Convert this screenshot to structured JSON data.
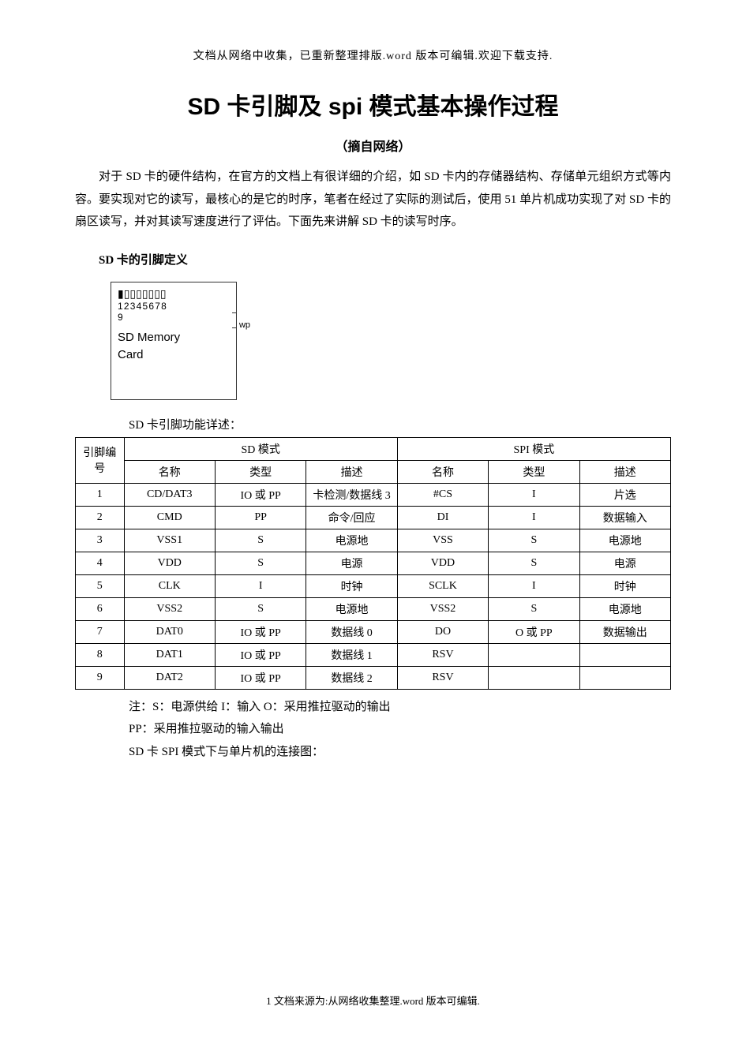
{
  "header_note": "文档从网络中收集，已重新整理排版.word 版本可编辑.欢迎下载支持.",
  "title": "SD 卡引脚及 spi 模式基本操作过程",
  "subtitle": "（摘自网络）",
  "intro": "对于 SD 卡的硬件结构，在官方的文档上有很详细的介绍，如 SD 卡内的存储器结构、存储单元组织方式等内容。要实现对它的读写，最核心的是它的时序，笔者在经过了实际的测试后，使用 51 单片机成功实现了对 SD 卡的扇区读写，并对其读写速度进行了评估。下面先来讲解 SD 卡的读写时序。",
  "section1_heading": "SD 卡的引脚定义",
  "sd_diagram": {
    "pins_row1": "12345678",
    "pins_row2": "9",
    "label_line1": "SD Memory",
    "label_line2": "Card",
    "wp_label": "wp"
  },
  "table_caption": "SD 卡引脚功能详述：",
  "table": {
    "header_pin": "引脚编号",
    "header_sd_mode": "SD 模式",
    "header_spi_mode": "SPI 模式",
    "header_name": "名称",
    "header_type": "类型",
    "header_desc": "描述",
    "rows": [
      {
        "pin": "1",
        "sd_name": "CD/DAT3",
        "sd_type": "IO 或 PP",
        "sd_desc": "卡检测/数据线 3",
        "spi_name": "#CS",
        "spi_type": "I",
        "spi_desc": "片选"
      },
      {
        "pin": "2",
        "sd_name": "CMD",
        "sd_type": "PP",
        "sd_desc": "命令/回应",
        "spi_name": "DI",
        "spi_type": "I",
        "spi_desc": "数据输入"
      },
      {
        "pin": "3",
        "sd_name": "VSS1",
        "sd_type": "S",
        "sd_desc": "电源地",
        "spi_name": "VSS",
        "spi_type": "S",
        "spi_desc": "电源地"
      },
      {
        "pin": "4",
        "sd_name": "VDD",
        "sd_type": "S",
        "sd_desc": "电源",
        "spi_name": "VDD",
        "spi_type": "S",
        "spi_desc": "电源"
      },
      {
        "pin": "5",
        "sd_name": "CLK",
        "sd_type": "I",
        "sd_desc": "时钟",
        "spi_name": "SCLK",
        "spi_type": "I",
        "spi_desc": "时钟"
      },
      {
        "pin": "6",
        "sd_name": "VSS2",
        "sd_type": "S",
        "sd_desc": "电源地",
        "spi_name": "VSS2",
        "spi_type": "S",
        "spi_desc": "电源地"
      },
      {
        "pin": "7",
        "sd_name": "DAT0",
        "sd_type": "IO 或 PP",
        "sd_desc": "数据线 0",
        "spi_name": "DO",
        "spi_type": "O 或 PP",
        "spi_desc": "数据输出"
      },
      {
        "pin": "8",
        "sd_name": "DAT1",
        "sd_type": "IO 或 PP",
        "sd_desc": "数据线 1",
        "spi_name": "RSV",
        "spi_type": "",
        "spi_desc": ""
      },
      {
        "pin": "9",
        "sd_name": "DAT2",
        "sd_type": "IO 或 PP",
        "sd_desc": "数据线 2",
        "spi_name": "RSV",
        "spi_type": "",
        "spi_desc": ""
      }
    ]
  },
  "notes_line1": "注：S：电源供给  I：输入  O：采用推拉驱动的输出",
  "notes_line2": "PP：采用推拉驱动的输入输出",
  "notes_line3": "SD 卡 SPI 模式下与单片机的连接图：",
  "footer_note": "1 文档来源为:从网络收集整理.word 版本可编辑."
}
